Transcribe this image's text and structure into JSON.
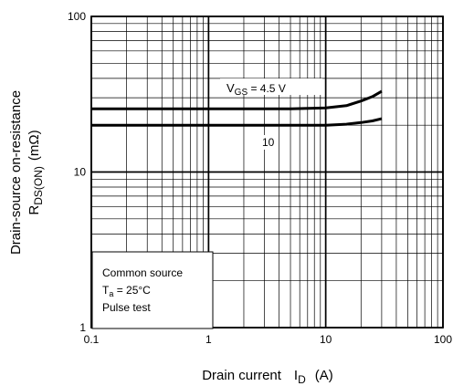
{
  "chart_data": {
    "type": "line",
    "title": "",
    "xlabel": {
      "main": "Drain current",
      "symbol": "I",
      "sub": "D",
      "unit": "(A)"
    },
    "ylabel": {
      "line1": "Drain-source on-resistance",
      "symbol": "R",
      "sub": "DS(ON)",
      "unit": "(mΩ)"
    },
    "x_scale": "log",
    "y_scale": "log",
    "xlim": [
      0.1,
      100
    ],
    "ylim": [
      1,
      100
    ],
    "x_ticks": [
      "0.1",
      "1",
      "10",
      "100"
    ],
    "y_ticks": [
      "1",
      "10",
      "100"
    ],
    "grid": true,
    "series": [
      {
        "name": "VGS = 4.5 V",
        "label_parts": {
          "symbol": "V",
          "sub": "GS",
          "rest": " = 4.5 V"
        },
        "x": [
          0.1,
          1,
          5,
          10,
          15,
          20,
          25,
          30
        ],
        "y": [
          25.5,
          25.5,
          25.5,
          25.8,
          26.7,
          28.6,
          30.5,
          33
        ]
      },
      {
        "name": "10",
        "label_parts": {
          "symbol": "",
          "sub": "",
          "rest": "10"
        },
        "x": [
          0.1,
          1,
          10,
          15,
          20,
          25,
          30
        ],
        "y": [
          20,
          20,
          20,
          20.3,
          20.8,
          21.3,
          22
        ]
      }
    ],
    "annotation": {
      "line1": "Common source",
      "line2": {
        "symbol": "T",
        "sub": "a",
        "rest": " = 25°C"
      },
      "line3": "Pulse test"
    }
  }
}
